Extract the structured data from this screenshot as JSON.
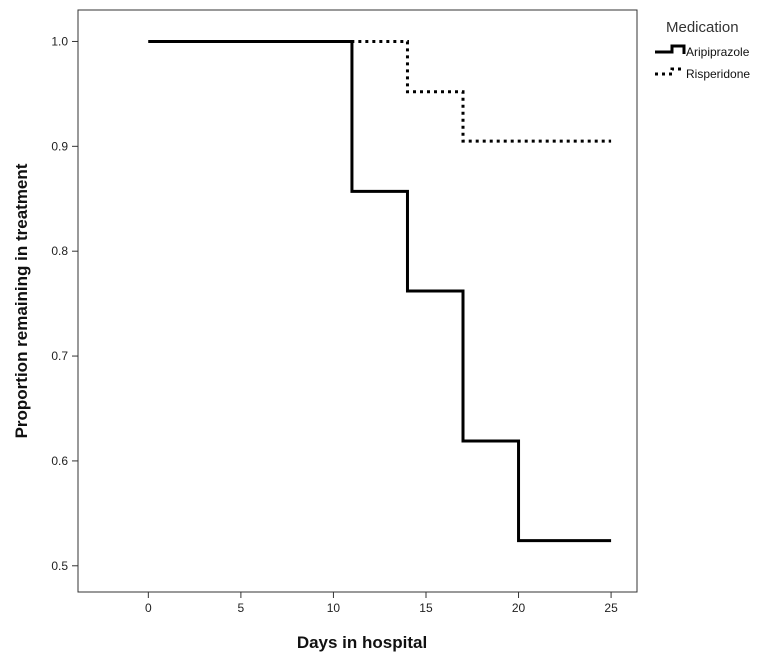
{
  "chart_data": {
    "type": "line",
    "subtype": "step",
    "xlabel": "Days in hospital",
    "ylabel": "Proportion remaining in treatment",
    "xlim": [
      -3.8,
      26.4
    ],
    "ylim": [
      0.475,
      1.03
    ],
    "xticks": [
      0,
      5,
      10,
      15,
      20,
      25
    ],
    "xtick_labels": [
      "0",
      "5",
      "10",
      "15",
      "20",
      "25"
    ],
    "yticks": [
      0.5,
      0.6,
      0.7,
      0.8,
      0.9,
      1.0
    ],
    "ytick_labels": [
      "0.5",
      "0.6",
      "0.7",
      "0.8",
      "0.9",
      "1.0"
    ],
    "grid": false,
    "legend": {
      "title": "Medication",
      "placement": "top-right, outside plot area"
    },
    "series": [
      {
        "name": "Aripiprazole",
        "style": "solid",
        "color": "#000000",
        "x": [
          0,
          11,
          14,
          17,
          20,
          25
        ],
        "y": [
          1.0,
          0.857,
          0.762,
          0.619,
          0.524,
          0.524
        ]
      },
      {
        "name": "Risperidone",
        "style": "dotted",
        "color": "#000000",
        "x": [
          0,
          14,
          17,
          25
        ],
        "y": [
          1.0,
          0.952,
          0.905,
          0.905
        ]
      }
    ]
  }
}
